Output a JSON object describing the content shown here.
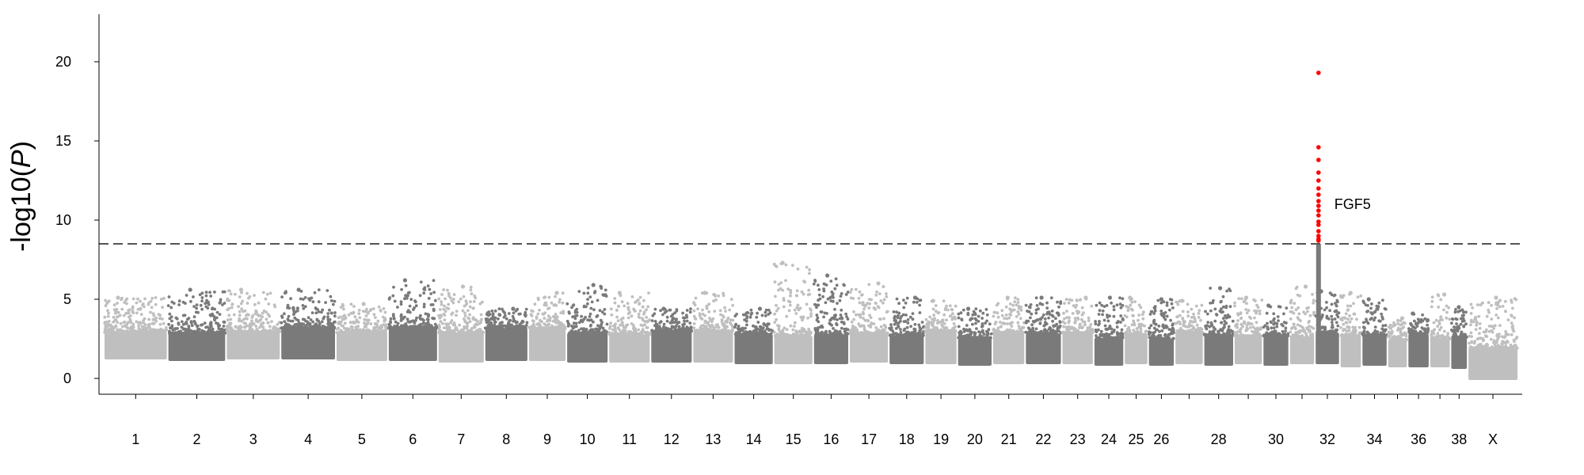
{
  "chart_data": {
    "type": "scatter",
    "subtype": "manhattan",
    "title": "",
    "xlabel": "",
    "ylabel_prefix": "-log10(",
    "ylabel_var": "P",
    "ylabel_suffix": ")",
    "ylim": [
      -1,
      23
    ],
    "yticks": [
      0,
      5,
      10,
      15,
      20
    ],
    "threshold": 8.5,
    "grid": false,
    "colors": {
      "light": "#bfbfbf",
      "dark": "#7a7a7a",
      "highlight": "#ff0000",
      "threshold": "#555555"
    },
    "chromosomes": [
      {
        "name": "1",
        "label": "1",
        "size": 160,
        "base": 1.2,
        "top": 5.1
      },
      {
        "name": "2",
        "label": "2",
        "size": 146,
        "base": 1.1,
        "top": 5.6
      },
      {
        "name": "3",
        "label": "3",
        "size": 136,
        "base": 1.2,
        "top": 5.6
      },
      {
        "name": "4",
        "label": "4",
        "size": 138,
        "base": 1.2,
        "top": 5.6
      },
      {
        "name": "5",
        "label": "5",
        "size": 130,
        "base": 1.1,
        "top": 4.7
      },
      {
        "name": "6",
        "label": "6",
        "size": 124,
        "base": 1.1,
        "top": 6.2
      },
      {
        "name": "7",
        "label": "7",
        "size": 116,
        "base": 1.0,
        "top": 5.8
      },
      {
        "name": "8",
        "label": "8",
        "size": 108,
        "base": 1.1,
        "top": 4.4
      },
      {
        "name": "9",
        "label": "9",
        "size": 94,
        "base": 1.1,
        "top": 5.4
      },
      {
        "name": "10",
        "label": "10",
        "size": 104,
        "base": 1.0,
        "top": 5.9
      },
      {
        "name": "11",
        "label": "11",
        "size": 104,
        "base": 1.0,
        "top": 5.4
      },
      {
        "name": "12",
        "label": "12",
        "size": 104,
        "base": 1.0,
        "top": 4.4
      },
      {
        "name": "13",
        "label": "13",
        "size": 102,
        "base": 1.0,
        "top": 5.4
      },
      {
        "name": "14",
        "label": "14",
        "size": 98,
        "base": 0.9,
        "top": 4.4
      },
      {
        "name": "15",
        "label": "15",
        "size": 98,
        "base": 0.9,
        "top": 7.3
      },
      {
        "name": "16",
        "label": "16",
        "size": 88,
        "base": 0.9,
        "top": 6.5
      },
      {
        "name": "17",
        "label": "17",
        "size": 98,
        "base": 1.0,
        "top": 6.0
      },
      {
        "name": "18",
        "label": "18",
        "size": 88,
        "base": 0.9,
        "top": 5.1
      },
      {
        "name": "19",
        "label": "19",
        "size": 80,
        "base": 0.9,
        "top": 4.9
      },
      {
        "name": "20",
        "label": "20",
        "size": 86,
        "base": 0.8,
        "top": 4.4
      },
      {
        "name": "21",
        "label": "21",
        "size": 80,
        "base": 0.9,
        "top": 5.1
      },
      {
        "name": "22",
        "label": "22",
        "size": 90,
        "base": 0.9,
        "top": 5.1
      },
      {
        "name": "23",
        "label": "23",
        "size": 78,
        "base": 0.9,
        "top": 5.1
      },
      {
        "name": "24",
        "label": "24",
        "size": 74,
        "base": 0.8,
        "top": 5.1
      },
      {
        "name": "25",
        "label": "25",
        "size": 58,
        "base": 0.9,
        "top": 5.1
      },
      {
        "name": "26",
        "label": "26",
        "size": 64,
        "base": 0.8,
        "top": 5.0
      },
      {
        "name": "27",
        "label": "",
        "size": 70,
        "base": 0.9,
        "top": 4.9
      },
      {
        "name": "28",
        "label": "28",
        "size": 74,
        "base": 0.8,
        "top": 5.7
      },
      {
        "name": "29",
        "label": "",
        "size": 70,
        "base": 0.9,
        "top": 5.1
      },
      {
        "name": "30",
        "label": "30",
        "size": 64,
        "base": 0.8,
        "top": 4.6
      },
      {
        "name": "31",
        "label": "",
        "size": 62,
        "base": 0.9,
        "top": 5.8
      },
      {
        "name": "32",
        "label": "32",
        "size": 60,
        "base": 0.9,
        "top": 5.5
      },
      {
        "name": "33",
        "label": "",
        "size": 52,
        "base": 0.7,
        "top": 5.4
      },
      {
        "name": "34",
        "label": "34",
        "size": 62,
        "base": 0.8,
        "top": 5.0
      },
      {
        "name": "35",
        "label": "",
        "size": 48,
        "base": 0.7,
        "top": 3.8
      },
      {
        "name": "36",
        "label": "36",
        "size": 52,
        "base": 0.7,
        "top": 4.1
      },
      {
        "name": "37",
        "label": "",
        "size": 50,
        "base": 0.7,
        "top": 5.3
      },
      {
        "name": "38",
        "label": "38",
        "size": 40,
        "base": 0.6,
        "top": 4.5
      },
      {
        "name": "X",
        "label": "X",
        "size": 126,
        "base": -0.1,
        "top": 5.1
      }
    ],
    "highlight": {
      "chromosome": "32",
      "gene": "FGF5",
      "values": [
        19.3,
        14.6,
        13.8,
        13.0,
        12.5,
        12.0,
        11.6,
        11.2,
        10.9,
        10.6,
        10.3,
        9.9,
        9.7,
        9.3,
        9.0,
        8.8,
        8.7
      ]
    }
  }
}
